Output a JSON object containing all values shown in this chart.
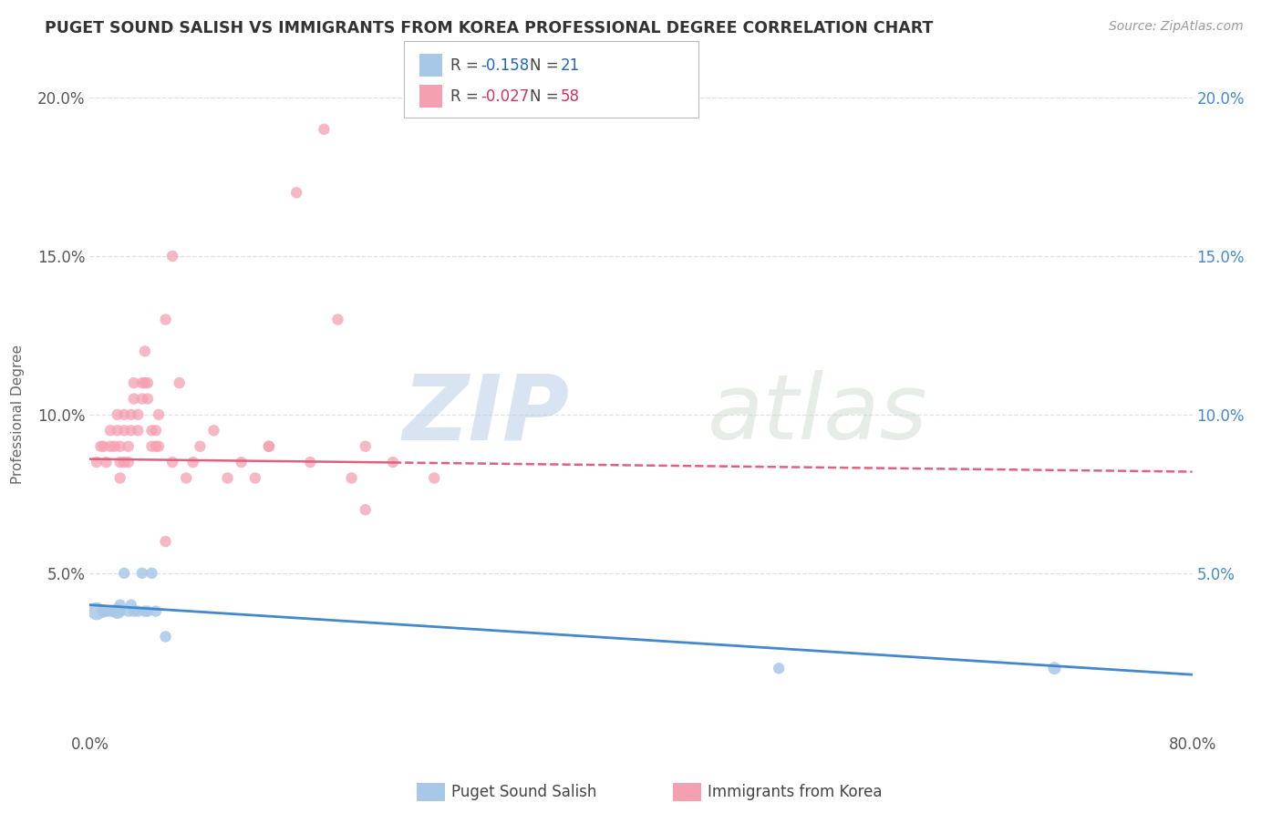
{
  "title": "PUGET SOUND SALISH VS IMMIGRANTS FROM KOREA PROFESSIONAL DEGREE CORRELATION CHART",
  "source_text": "Source: ZipAtlas.com",
  "ylabel": "Professional Degree",
  "xlim": [
    0,
    0.8
  ],
  "ylim": [
    0,
    0.2
  ],
  "background_color": "#ffffff",
  "grid_color": "#e0e0e8",
  "watermark_zip": "ZIP",
  "watermark_atlas": "atlas",
  "series1_color": "#a8c8e8",
  "series2_color": "#f4a0b0",
  "series1_label": "Puget Sound Salish",
  "series2_label": "Immigrants from Korea",
  "series1_R": -0.158,
  "series1_N": 21,
  "series2_R": -0.027,
  "series2_N": 58,
  "series1_line_color": "#4488cc",
  "series2_line_color": "#e06080",
  "series1_x": [
    0.005,
    0.01,
    0.012,
    0.015,
    0.018,
    0.02,
    0.022,
    0.022,
    0.025,
    0.028,
    0.03,
    0.032,
    0.035,
    0.038,
    0.04,
    0.042,
    0.045,
    0.048,
    0.055,
    0.5,
    0.7
  ],
  "series1_y": [
    0.038,
    0.038,
    0.038,
    0.038,
    0.038,
    0.038,
    0.038,
    0.04,
    0.05,
    0.038,
    0.04,
    0.038,
    0.038,
    0.05,
    0.038,
    0.038,
    0.05,
    0.038,
    0.03,
    0.02,
    0.02
  ],
  "series1_sizes": [
    200,
    100,
    80,
    80,
    80,
    150,
    80,
    80,
    80,
    80,
    80,
    80,
    80,
    80,
    80,
    80,
    80,
    80,
    80,
    80,
    100
  ],
  "series2_x": [
    0.005,
    0.008,
    0.01,
    0.012,
    0.015,
    0.015,
    0.018,
    0.02,
    0.02,
    0.022,
    0.022,
    0.022,
    0.025,
    0.025,
    0.025,
    0.028,
    0.028,
    0.03,
    0.03,
    0.032,
    0.032,
    0.035,
    0.035,
    0.038,
    0.038,
    0.04,
    0.04,
    0.042,
    0.042,
    0.045,
    0.045,
    0.048,
    0.048,
    0.05,
    0.05,
    0.055,
    0.06,
    0.06,
    0.065,
    0.07,
    0.075,
    0.08,
    0.09,
    0.1,
    0.11,
    0.12,
    0.13,
    0.15,
    0.17,
    0.18,
    0.19,
    0.2,
    0.22,
    0.25,
    0.16,
    0.13,
    0.055,
    0.2
  ],
  "series2_y": [
    0.085,
    0.09,
    0.09,
    0.085,
    0.09,
    0.095,
    0.09,
    0.095,
    0.1,
    0.09,
    0.085,
    0.08,
    0.095,
    0.1,
    0.085,
    0.09,
    0.085,
    0.1,
    0.095,
    0.11,
    0.105,
    0.095,
    0.1,
    0.105,
    0.11,
    0.11,
    0.12,
    0.11,
    0.105,
    0.095,
    0.09,
    0.095,
    0.09,
    0.1,
    0.09,
    0.13,
    0.085,
    0.15,
    0.11,
    0.08,
    0.085,
    0.09,
    0.095,
    0.08,
    0.085,
    0.08,
    0.09,
    0.17,
    0.19,
    0.13,
    0.08,
    0.07,
    0.085,
    0.08,
    0.085,
    0.09,
    0.06,
    0.09
  ],
  "series2_sizes": [
    80,
    80,
    80,
    80,
    80,
    80,
    80,
    80,
    80,
    80,
    80,
    80,
    80,
    80,
    80,
    80,
    80,
    80,
    80,
    80,
    80,
    80,
    80,
    80,
    80,
    80,
    80,
    80,
    80,
    80,
    80,
    80,
    80,
    80,
    80,
    80,
    80,
    80,
    80,
    80,
    80,
    80,
    80,
    80,
    80,
    80,
    80,
    80,
    80,
    80,
    80,
    80,
    80,
    80,
    80,
    80,
    80,
    80
  ]
}
